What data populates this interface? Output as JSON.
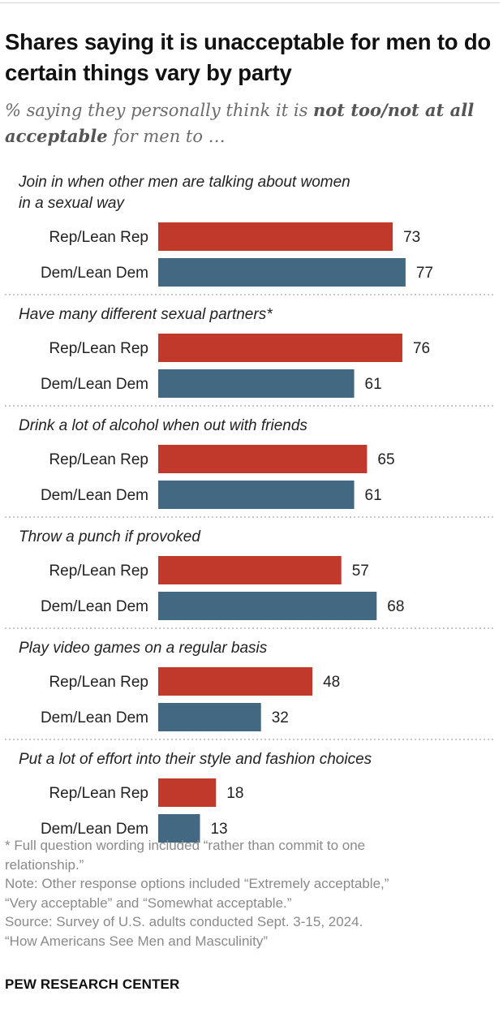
{
  "header": {
    "title": "Shares saying it is unacceptable for men to do certain things vary by party",
    "subtitle_prefix": "% saying they personally think it is ",
    "subtitle_emphasis": "not too/not at all acceptable",
    "subtitle_suffix": " for men to …"
  },
  "chart_data": {
    "type": "bar",
    "orientation": "horizontal",
    "title": "Shares saying it is unacceptable for men to do certain things vary by party",
    "xlim": [
      0,
      100
    ],
    "groups": [
      {
        "label": [
          "Join in when other men are talking about women",
          "in a sexual way"
        ],
        "values": [
          73,
          77
        ]
      },
      {
        "label": [
          "Have many different sexual partners*"
        ],
        "values": [
          76,
          61
        ]
      },
      {
        "label": [
          "Drink a lot of alcohol when out with friends"
        ],
        "values": [
          65,
          61
        ]
      },
      {
        "label": [
          "Throw a punch if provoked"
        ],
        "values": [
          57,
          68
        ]
      },
      {
        "label": [
          "Play video games on a regular basis"
        ],
        "values": [
          48,
          32
        ]
      },
      {
        "label": [
          "Put a lot of effort into their style and fashion choices"
        ],
        "values": [
          18,
          13
        ]
      }
    ],
    "series": [
      {
        "name": "Rep/Lean Rep",
        "color": "#c0392b"
      },
      {
        "name": "Dem/Lean Dem",
        "color": "#436882"
      }
    ]
  },
  "footer": {
    "notes": [
      "* Full question wording included “rather than commit to one",
      "relationship.”",
      "Note: Other response options included “Extremely acceptable,”",
      "“Very acceptable” and “Somewhat acceptable.”",
      "Source: Survey of U.S. adults conducted Sept. 3-15, 2024.",
      "“How Americans See Men and Masculinity”"
    ],
    "brand": "PEW RESEARCH CENTER"
  }
}
